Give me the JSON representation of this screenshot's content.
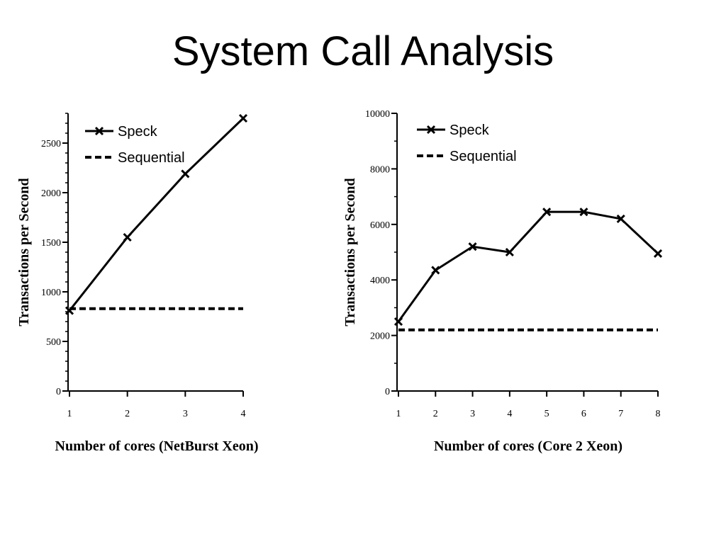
{
  "slide": {
    "title": "System Call Analysis"
  },
  "chart_data": [
    {
      "type": "line",
      "x": [
        1,
        2,
        3,
        4
      ],
      "xticks": [
        1,
        2,
        3,
        4
      ],
      "yticks": [
        0,
        500,
        1000,
        1500,
        2000,
        2500
      ],
      "ylim": [
        0,
        2800
      ],
      "xlim": [
        1,
        4
      ],
      "xlabel": "Number of cores (NetBurst Xeon)",
      "ylabel": "Transactions per Second",
      "legend_position": "top-left",
      "series": [
        {
          "name": "Speck",
          "style": "solid-x-markers",
          "values": [
            810,
            1550,
            2190,
            2750
          ]
        },
        {
          "name": "Sequential",
          "style": "dashed",
          "values": [
            830,
            830,
            830,
            830
          ]
        }
      ]
    },
    {
      "type": "line",
      "x": [
        1,
        2,
        3,
        4,
        5,
        6,
        7,
        8
      ],
      "xticks": [
        1,
        2,
        3,
        4,
        5,
        6,
        7,
        8
      ],
      "yticks": [
        0,
        2000,
        4000,
        6000,
        8000,
        10000
      ],
      "ylim": [
        0,
        10000
      ],
      "xlim": [
        1,
        8
      ],
      "xlabel": "Number of cores (Core 2 Xeon)",
      "ylabel": "Transactions per Second",
      "legend_position": "top-left",
      "series": [
        {
          "name": "Speck",
          "style": "solid-x-markers",
          "values": [
            2500,
            4350,
            5200,
            5000,
            6450,
            6450,
            6200,
            4950
          ]
        },
        {
          "name": "Sequential",
          "style": "dashed",
          "values": [
            2200,
            2200,
            2200,
            2200,
            2200,
            2200,
            2200,
            2200
          ]
        }
      ]
    }
  ]
}
